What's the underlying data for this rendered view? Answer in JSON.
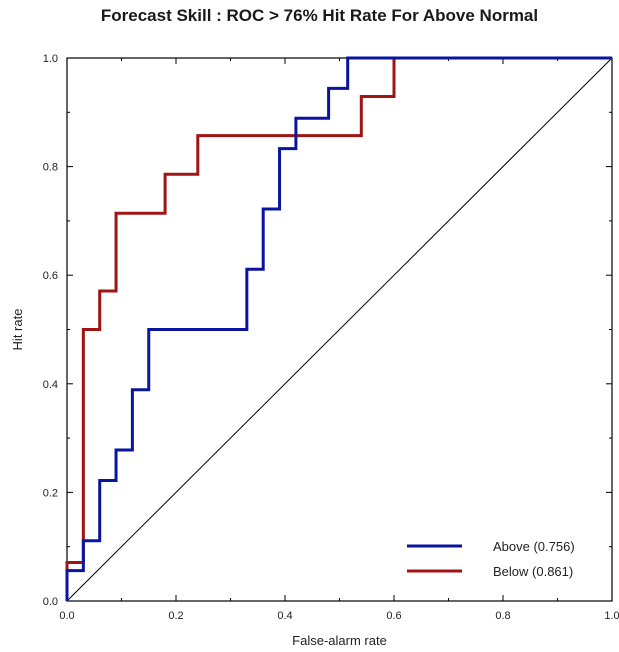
{
  "chart_data": {
    "type": "line",
    "title": "Forecast Skill : ROC > 76% Hit Rate For Above Normal",
    "xlabel": "False-alarm rate",
    "ylabel": "Hit rate",
    "xlim": [
      0,
      1
    ],
    "ylim": [
      0,
      1
    ],
    "x_ticks": [
      "0.0",
      "0.2",
      "0.4",
      "0.6",
      "0.8",
      "1.0"
    ],
    "y_ticks": [
      "0.0",
      "0.2",
      "0.4",
      "0.6",
      "0.8",
      "1.0"
    ],
    "grid": false,
    "legend_position": "bottom-right",
    "diagonal": {
      "x": [
        0,
        1
      ],
      "y": [
        0,
        1
      ],
      "color": "#000000"
    },
    "series": [
      {
        "name": "Above (0.756)",
        "color": "#0a14a0",
        "x": [
          0,
          0,
          0.03,
          0.03,
          0.06,
          0.06,
          0.09,
          0.09,
          0.12,
          0.12,
          0.15,
          0.15,
          0.33,
          0.33,
          0.36,
          0.36,
          0.39,
          0.39,
          0.42,
          0.42,
          0.48,
          0.48,
          0.515,
          0.515,
          1.0
        ],
        "y": [
          0,
          0.056,
          0.056,
          0.111,
          0.111,
          0.222,
          0.222,
          0.278,
          0.278,
          0.389,
          0.389,
          0.5,
          0.5,
          0.611,
          0.611,
          0.722,
          0.722,
          0.833,
          0.833,
          0.889,
          0.889,
          0.944,
          0.944,
          1.0,
          1.0
        ]
      },
      {
        "name": "Below (0.861)",
        "color": "#a01414",
        "x": [
          0,
          0,
          0.03,
          0.03,
          0.06,
          0.06,
          0.09,
          0.09,
          0.18,
          0.18,
          0.24,
          0.24,
          0.54,
          0.54,
          0.6,
          0.6,
          1.0
        ],
        "y": [
          0,
          0.071,
          0.071,
          0.5,
          0.5,
          0.571,
          0.571,
          0.714,
          0.714,
          0.786,
          0.786,
          0.857,
          0.857,
          0.929,
          0.929,
          1.0,
          1.0
        ]
      }
    ]
  }
}
